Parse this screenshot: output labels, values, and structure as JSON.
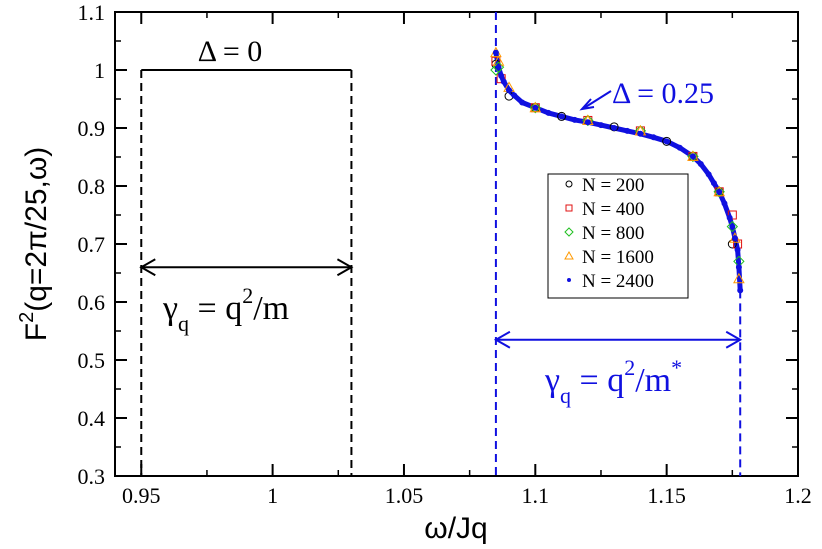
{
  "chart_data": {
    "type": "scatter",
    "xlabel": "ω/Jq",
    "ylabel_main": "F",
    "ylabel_sup": "2",
    "ylabel_rest": "(q=2π/25,ω)",
    "xlim": [
      0.94,
      1.2
    ],
    "ylim": [
      0.3,
      1.1
    ],
    "xticks": [
      0.95,
      1,
      1.05,
      1.1,
      1.15,
      1.2
    ],
    "xtick_labels": [
      "0.95",
      "1",
      "1.05",
      "1.1",
      "1.15",
      "1.2"
    ],
    "yticks": [
      0.3,
      0.4,
      0.5,
      0.6,
      0.7,
      0.8,
      0.9,
      1,
      1.1
    ],
    "ytick_labels": [
      "0.3",
      "0.4",
      "0.5",
      "0.6",
      "0.7",
      "0.8",
      "0.9",
      "1",
      "1.1"
    ],
    "legend_position": "right, inside plot",
    "series": [
      {
        "name": "N = 200",
        "marker": "circle",
        "color": "#000000",
        "x": [
          1.085,
          1.09,
          1.1,
          1.11,
          1.13,
          1.15,
          1.16,
          1.17,
          1.175
        ],
        "y": [
          1.01,
          0.955,
          0.935,
          0.92,
          0.902,
          0.877,
          0.851,
          0.79,
          0.7
        ]
      },
      {
        "name": "N = 400",
        "marker": "square",
        "color": "#e01010",
        "x": [
          1.085,
          1.087,
          1.1,
          1.12,
          1.14,
          1.16,
          1.17,
          1.175,
          1.177
        ],
        "y": [
          1.015,
          0.985,
          0.935,
          0.913,
          0.895,
          0.851,
          0.79,
          0.75,
          0.7
        ]
      },
      {
        "name": "N = 800",
        "marker": "diamond",
        "color": "#20c020",
        "x": [
          1.085,
          1.086,
          1.1,
          1.12,
          1.14,
          1.16,
          1.17,
          1.175,
          1.1775
        ],
        "y": [
          1.0,
          1.005,
          0.935,
          0.913,
          0.895,
          0.851,
          0.79,
          0.73,
          0.67
        ]
      },
      {
        "name": "N = 1600",
        "marker": "triangle",
        "color": "#ff9900",
        "x": [
          1.085,
          1.086,
          1.09,
          1.1,
          1.12,
          1.14,
          1.16,
          1.17,
          1.176,
          1.1775
        ],
        "y": [
          1.03,
          1.015,
          0.97,
          0.935,
          0.913,
          0.895,
          0.851,
          0.79,
          0.71,
          0.64
        ]
      },
      {
        "name": "N = 2400",
        "marker": "dot",
        "color": "#1010e0",
        "x": [
          1.085,
          1.086,
          1.087,
          1.088,
          1.09,
          1.092,
          1.095,
          1.1,
          1.105,
          1.11,
          1.115,
          1.12,
          1.125,
          1.13,
          1.135,
          1.14,
          1.145,
          1.15,
          1.155,
          1.16,
          1.163,
          1.166,
          1.168,
          1.17,
          1.172,
          1.174,
          1.175,
          1.176,
          1.177,
          1.1775,
          1.178
        ],
        "y": [
          1.03,
          1.005,
          0.99,
          0.98,
          0.965,
          0.956,
          0.944,
          0.935,
          0.926,
          0.92,
          0.914,
          0.91,
          0.905,
          0.9,
          0.895,
          0.89,
          0.884,
          0.877,
          0.866,
          0.851,
          0.838,
          0.82,
          0.805,
          0.79,
          0.77,
          0.745,
          0.73,
          0.71,
          0.69,
          0.66,
          0.62
        ]
      }
    ],
    "reference_lines": {
      "delta0_left_x": 0.95,
      "delta0_right_x": 1.03,
      "delta0_top_y": 1.0,
      "delta0_arrow_y": 0.66,
      "delta025_left_x": 1.085,
      "delta025_right_x": 1.178,
      "delta025_arrow_y": 0.535
    },
    "annotations": {
      "delta0": "Δ = 0",
      "gamma0_main": "γ",
      "gamma0_sub": "q",
      "gamma0_mid": " = q",
      "gamma0_sup": "2",
      "gamma0_end": "/m",
      "delta025": "Δ = 0.25",
      "gamma1_main": "γ",
      "gamma1_sub": "q",
      "gamma1_mid": " = q",
      "gamma1_sup": "2",
      "gamma1_end": "/m",
      "gamma1_star": "*"
    }
  },
  "colors": {
    "axis": "#000000",
    "blue_annotation": "#1010e0",
    "black_annotation": "#000000"
  }
}
